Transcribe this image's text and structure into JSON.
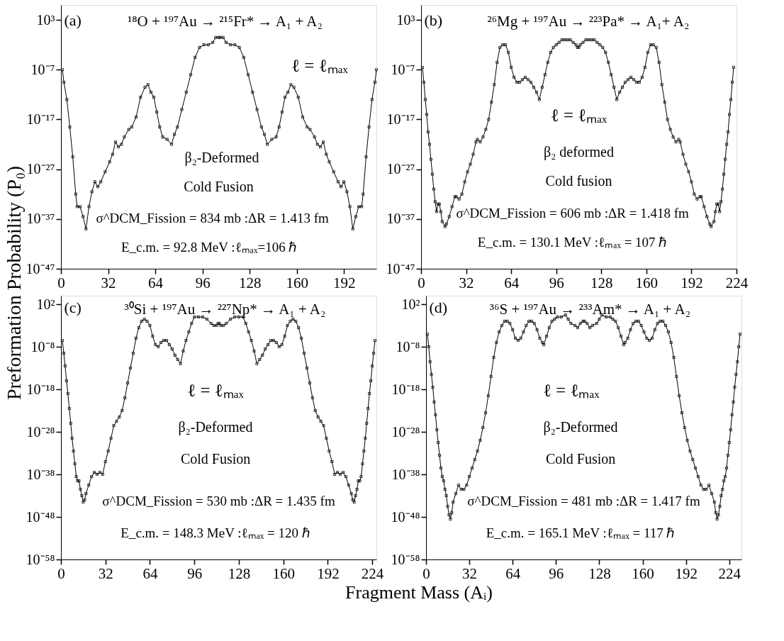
{
  "chart_data": [
    {
      "type": "line",
      "xlabel": "Fragment Mass (Aᵢ)",
      "ylabel": "Preformation Probability (P₀)",
      "log": true,
      "marker": "square",
      "line_style": "solid",
      "grid": false,
      "annotations": [
        "(a)",
        "¹⁸O + ¹⁹⁷Au → ²¹⁵Fr* → A₁ + A₂",
        "ℓ = ℓₘₐₓ",
        "β₂-Deformed",
        "Cold Fusion",
        "σ^DCM_Fission = 834 mb  :ΔR = 1.413 fm",
        "E_c.m. = 92.8 MeV  :ℓₘₐₓ=106 ℏ"
      ],
      "xlim": [
        0,
        214
      ],
      "xticks": [
        0,
        32,
        64,
        96,
        128,
        160,
        192
      ],
      "ylim": [
        1e-47,
        1000000.0
      ],
      "yticks": [
        {
          "value": 1000.0,
          "label": "10³"
        },
        {
          "value": 1e-07,
          "label": "10⁻⁷"
        },
        {
          "value": 1e-17,
          "label": "10⁻¹⁷"
        },
        {
          "value": 1e-27,
          "label": "10⁻²⁷"
        },
        {
          "value": 1e-37,
          "label": "10⁻³⁷"
        },
        {
          "value": 1e-47,
          "label": "10⁻⁴⁷"
        }
      ],
      "x": [
        1,
        2,
        4,
        6,
        8,
        10,
        11,
        13,
        15,
        17,
        19,
        21,
        23,
        25,
        27,
        30,
        33,
        35,
        37,
        39,
        41,
        43,
        46,
        48,
        51,
        54,
        57,
        59,
        61,
        63,
        65,
        67,
        69,
        72,
        75,
        77,
        79,
        82,
        85,
        88,
        91,
        94,
        97,
        100,
        103,
        105,
        107,
        108,
        110,
        112,
        115,
        118,
        121,
        124,
        127,
        130,
        133,
        136,
        138,
        140,
        143,
        146,
        148,
        150,
        152,
        154,
        156,
        158,
        161,
        164,
        167,
        169,
        172,
        174,
        176,
        178,
        180,
        182,
        185,
        188,
        190,
        192,
        194,
        196,
        198,
        200,
        202,
        204,
        205,
        207,
        209,
        211,
        213,
        214
      ],
      "series": [
        {
          "color": "#000000",
          "values": [
            1e-07,
            3e-10,
            1e-13,
            3e-19,
            3e-25,
            1e-32,
            3e-35,
            3e-35,
            3e-37,
            1e-39,
            3e-35,
            3e-32,
            3e-30,
            3e-31,
            3e-30,
            3e-28,
            3e-26,
            1e-24,
            3e-22,
            3e-23,
            1e-22,
            3e-21,
            1e-19,
            3e-19,
            3e-17,
            3e-13,
            3e-11,
            1e-10,
            3e-12,
            3e-13,
            3e-16,
            3e-19,
            3e-21,
            1e-21,
            1e-22,
            1e-20,
            3e-19,
            1e-15,
            3e-12,
            1e-08,
            3e-05,
            0.003,
            0.01,
            0.01,
            0.03,
            0.3,
            0.3,
            0.3,
            0.3,
            0.03,
            0.01,
            0.01,
            0.003,
            3e-05,
            1e-08,
            3e-12,
            1e-15,
            3e-19,
            1e-20,
            1e-22,
            1e-21,
            3e-21,
            3e-19,
            3e-16,
            3e-13,
            3e-12,
            1e-10,
            3e-11,
            3e-13,
            3e-17,
            3e-19,
            1e-19,
            3e-21,
            1e-22,
            3e-23,
            3e-22,
            1e-24,
            3e-26,
            3e-28,
            3e-30,
            3e-31,
            3e-30,
            3e-32,
            3e-35,
            1e-39,
            3e-37,
            3e-35,
            3e-35,
            1e-32,
            3e-25,
            3e-19,
            1e-13,
            3e-10,
            1e-07
          ]
        }
      ]
    },
    {
      "type": "line",
      "log": true,
      "marker": "square",
      "line_style": "solid",
      "grid": false,
      "annotations": [
        "(b)",
        "²⁶Mg + ¹⁹⁷Au → ²²³Pa* → A₁+ A₂",
        "ℓ = ℓₘₐₓ",
        "β₂ deformed",
        "Cold fusion",
        "σ^DCM_Fission = 606 mb  :ΔR = 1.418 fm",
        "E_c.m. = 130.1 MeV :ℓₘₐₓ = 107 ℏ"
      ],
      "xlim": [
        0,
        224
      ],
      "xticks": [
        0,
        32,
        64,
        96,
        128,
        160,
        192,
        224
      ],
      "ylim": [
        1e-47,
        1000000.0
      ],
      "yticks": [
        {
          "value": 1000.0,
          "label": "10³"
        },
        {
          "value": 1e-07,
          "label": "10⁻⁷"
        },
        {
          "value": 1e-17,
          "label": "10⁻¹⁷"
        },
        {
          "value": 1e-27,
          "label": "10⁻²⁷"
        },
        {
          "value": 1e-37,
          "label": "10⁻³⁷"
        },
        {
          "value": 1e-47,
          "label": "10⁻⁴⁷"
        }
      ],
      "x": [
        1,
        2,
        3,
        4,
        5,
        6,
        7,
        8,
        9,
        10,
        11,
        12,
        13,
        14,
        15,
        17,
        18,
        20,
        22,
        24,
        25,
        27,
        29,
        31,
        33,
        35,
        37,
        39,
        40,
        42,
        44,
        46,
        48,
        50,
        52,
        54,
        56,
        58,
        60,
        62,
        64,
        66,
        68,
        70,
        72,
        74,
        76,
        78,
        80,
        82,
        84,
        86,
        88,
        90,
        92,
        94,
        96,
        98,
        100,
        102,
        104,
        106,
        108,
        110,
        111,
        112,
        113,
        115,
        117,
        119,
        121,
        123,
        125,
        127,
        129,
        131,
        133,
        135,
        137,
        139,
        141,
        143,
        145,
        147,
        149,
        151,
        153,
        155,
        157,
        159,
        161,
        163,
        165,
        167,
        169,
        171,
        173,
        175,
        177,
        179,
        181,
        183,
        184,
        186,
        188,
        190,
        192,
        194,
        196,
        198,
        199,
        201,
        203,
        205,
        206,
        208,
        209,
        210,
        211,
        212,
        213,
        214,
        215,
        216,
        217,
        218,
        219,
        220,
        221,
        222
      ],
      "series": [
        {
          "color": "#000000",
          "values": [
            3e-07,
            3e-10,
            1e-13,
            1e-16,
            3e-20,
            1e-22,
            1e-25,
            1e-28,
            1e-31,
            3e-34,
            3e-36,
            1e-34,
            1e-34,
            3e-36,
            3e-38,
            3e-39,
            1e-38,
            3e-37,
            3e-35,
            3e-33,
            3e-33,
            1e-33,
            1e-32,
            3e-30,
            3e-28,
            1e-26,
            1e-24,
            3e-22,
            1e-21,
            3e-22,
            3e-21,
            1e-19,
            1e-17,
            3e-14,
            1e-10,
            3e-06,
            0.003,
            0.01,
            0.01,
            0.0003,
            3e-07,
            3e-09,
            3e-10,
            3e-10,
            1e-09,
            3e-09,
            1e-09,
            3e-10,
            3e-11,
            3e-12,
            1e-13,
            3e-11,
            1e-08,
            3e-06,
            0.0003,
            0.003,
            0.01,
            0.03,
            0.1,
            0.1,
            0.1,
            0.1,
            0.03,
            0.01,
            0.003,
            0.003,
            0.01,
            0.03,
            0.1,
            0.1,
            0.1,
            0.1,
            0.03,
            0.01,
            0.003,
            0.0003,
            3e-06,
            1e-08,
            3e-11,
            1e-13,
            3e-12,
            3e-11,
            3e-10,
            1e-09,
            3e-09,
            1e-09,
            3e-10,
            3e-10,
            3e-09,
            3e-07,
            0.0003,
            0.01,
            0.01,
            0.003,
            3e-06,
            1e-10,
            3e-14,
            1e-17,
            1e-19,
            3e-21,
            3e-22,
            1e-21,
            3e-22,
            1e-24,
            1e-26,
            3e-28,
            3e-30,
            1e-32,
            1e-33,
            3e-33,
            3e-33,
            3e-35,
            3e-37,
            1e-38,
            3e-39,
            3e-38,
            3e-36,
            1e-34,
            1e-34,
            3e-36,
            3e-34,
            1e-31,
            1e-28,
            1e-25,
            1e-22,
            3e-20,
            1e-16,
            1e-13,
            3e-10,
            3e-07
          ]
        }
      ]
    },
    {
      "type": "line",
      "log": true,
      "marker": "square",
      "line_style": "solid",
      "grid": false,
      "annotations": [
        "(c)",
        "³⁰Si + ¹⁹⁷Au → ²²⁷Np* → A₁ + A₂",
        "ℓ = ℓₘₐₓ",
        "β₂-Deformed",
        "Cold Fusion",
        "σ^DCM_Fission = 530 mb   :ΔR = 1.435 fm",
        "E_c.m. = 148.3 MeV :ℓₘₐₓ = 120 ℏ"
      ],
      "xlim": [
        0,
        227
      ],
      "xticks": [
        0,
        32,
        64,
        96,
        128,
        160,
        192,
        224
      ],
      "ylim": [
        1e-58,
        10000.0
      ],
      "yticks": [
        {
          "value": 100.0,
          "label": "10²"
        },
        {
          "value": 1e-08,
          "label": "10⁻⁸"
        },
        {
          "value": 1e-18,
          "label": "10⁻¹⁸"
        },
        {
          "value": 1e-28,
          "label": "10⁻²⁸"
        },
        {
          "value": 1e-38,
          "label": "10⁻³⁸"
        },
        {
          "value": 1e-48,
          "label": "10⁻⁴⁸"
        },
        {
          "value": 1e-58,
          "label": "10⁻⁵⁸"
        }
      ],
      "x": [
        1,
        2,
        3,
        4,
        5,
        6,
        7,
        8,
        9,
        10,
        11,
        12,
        13,
        14,
        15,
        16,
        17,
        18,
        20,
        22,
        24,
        26,
        28,
        30,
        32,
        34,
        36,
        38,
        40,
        42,
        44,
        46,
        48,
        50,
        52,
        54,
        56,
        58,
        60,
        62,
        64,
        66,
        68,
        70,
        72,
        74,
        76,
        78,
        80,
        82,
        84,
        86,
        88,
        90,
        92,
        94,
        96,
        99,
        102,
        105,
        108,
        110,
        112,
        113,
        114,
        115,
        117,
        119,
        122,
        125,
        128,
        131,
        133,
        135,
        137,
        139,
        141,
        143,
        145,
        147,
        149,
        151,
        153,
        155,
        157,
        159,
        161,
        163,
        165,
        167,
        169,
        171,
        173,
        175,
        177,
        179,
        181,
        183,
        185,
        187,
        189,
        191,
        193,
        195,
        197,
        199,
        201,
        203,
        205,
        207,
        209,
        210,
        211,
        212,
        213,
        214,
        215,
        216,
        217,
        218,
        219,
        220,
        221,
        222,
        223,
        224,
        225,
        226
      ],
      "series": [
        {
          "color": "#000000",
          "values": [
            3e-07,
            3e-10,
            3e-13,
            1e-16,
            1e-19,
            3e-23,
            1e-26,
            3e-30,
            3e-33,
            3e-36,
            3e-39,
            3e-40,
            3e-40,
            3e-42,
            1e-43,
            3e-45,
            1e-44,
            3e-43,
            3e-41,
            3e-39,
            3e-38,
            1e-38,
            3e-38,
            1e-38,
            1e-35,
            3e-33,
            3e-30,
            3e-27,
            3e-26,
            3e-25,
            1e-23,
            1e-20,
            3e-17,
            1e-13,
            3e-10,
            1e-06,
            0.0003,
            0.01,
            0.03,
            0.01,
            0.001,
            3e-06,
            3e-08,
            1e-08,
            1e-07,
            3e-07,
            3e-07,
            3e-08,
            3e-09,
            1e-10,
            1e-11,
            1e-12,
            1e-09,
            3e-07,
            3e-05,
            0.003,
            0.1,
            0.1,
            0.1,
            0.03,
            0.003,
            0.001,
            0.001,
            0.003,
            0.003,
            0.001,
            0.001,
            0.003,
            0.03,
            0.1,
            0.1,
            0.1,
            0.003,
            3e-05,
            3e-07,
            1e-09,
            1e-12,
            1e-11,
            1e-10,
            3e-09,
            3e-08,
            3e-07,
            3e-07,
            1e-07,
            1e-08,
            3e-08,
            3e-06,
            0.001,
            0.01,
            0.03,
            0.01,
            0.0003,
            1e-06,
            3e-10,
            1e-13,
            3e-17,
            1e-20,
            1e-23,
            3e-25,
            3e-26,
            3e-27,
            3e-30,
            3e-33,
            1e-35,
            1e-38,
            3e-38,
            1e-38,
            3e-38,
            3e-39,
            3e-41,
            3e-43,
            1e-44,
            3e-45,
            1e-43,
            3e-42,
            3e-40,
            3e-40,
            3e-39,
            3e-36,
            3e-33,
            3e-30,
            1e-26,
            3e-23,
            1e-19,
            1e-16,
            3e-13,
            3e-10,
            3e-07
          ]
        }
      ]
    },
    {
      "type": "line",
      "log": true,
      "marker": "square",
      "line_style": "solid",
      "grid": false,
      "annotations": [
        "(d)",
        "³⁶S + ¹⁹⁷Au → ²³³Am* → A₁ + A₂",
        "ℓ = ℓₘₐₓ",
        "β₂-Deformed",
        "Cold Fusion",
        "σ^DCM_Fission = 481 mb     :ΔR = 1.417 fm",
        "E_c.m. = 165.1 MeV :ℓₘₐₓ = 117 ℏ"
      ],
      "xlim": [
        0,
        233
      ],
      "xticks": [
        0,
        32,
        64,
        96,
        128,
        160,
        192,
        224
      ],
      "ylim": [
        1e-58,
        10000.0
      ],
      "yticks": [
        {
          "value": 100.0,
          "label": "10²"
        },
        {
          "value": 1e-08,
          "label": "10⁻⁸"
        },
        {
          "value": 1e-18,
          "label": "10⁻¹⁸"
        },
        {
          "value": 1e-28,
          "label": "10⁻²⁸"
        },
        {
          "value": 1e-38,
          "label": "10⁻³⁸"
        },
        {
          "value": 1e-48,
          "label": "10⁻⁴⁸"
        },
        {
          "value": 1e-58,
          "label": "10⁻⁵⁸"
        }
      ],
      "x": [
        1,
        2,
        3,
        4,
        5,
        6,
        7,
        8,
        9,
        10,
        11,
        12,
        13,
        14,
        15,
        16,
        17,
        18,
        19,
        20,
        22,
        24,
        26,
        28,
        30,
        32,
        34,
        36,
        38,
        40,
        42,
        44,
        46,
        48,
        50,
        52,
        54,
        56,
        58,
        60,
        62,
        64,
        66,
        68,
        70,
        72,
        74,
        76,
        78,
        80,
        82,
        84,
        86,
        87,
        89,
        91,
        93,
        95,
        97,
        100,
        103,
        105,
        107,
        110,
        112,
        114,
        116,
        117,
        119,
        121,
        123,
        126,
        128,
        130,
        133,
        136,
        138,
        140,
        142,
        144,
        146,
        147,
        149,
        151,
        153,
        155,
        157,
        159,
        161,
        163,
        165,
        167,
        169,
        171,
        173,
        175,
        177,
        179,
        181,
        183,
        185,
        187,
        189,
        191,
        193,
        195,
        197,
        199,
        201,
        203,
        205,
        207,
        209,
        211,
        213,
        214,
        215,
        216,
        217,
        218,
        219,
        220,
        221,
        222,
        223,
        224,
        225,
        226,
        227,
        228,
        229,
        230,
        231,
        232
      ],
      "series": [
        {
          "color": "#000000",
          "values": [
            1e-05,
            1e-08,
            3e-12,
            3e-15,
            3e-18,
            1e-21,
            1e-24,
            3e-28,
            3e-31,
            3e-34,
            3e-37,
            3e-39,
            3e-40,
            3e-42,
            1e-43,
            3e-46,
            3e-48,
            3e-49,
            1e-47,
            3e-45,
            3e-43,
            3e-41,
            3e-42,
            3e-42,
            3e-41,
            3e-39,
            3e-37,
            3e-35,
            3e-33,
            1e-30,
            1e-27,
            3e-24,
            3e-20,
            1e-15,
            3e-11,
            1e-07,
            3e-05,
            0.001,
            0.01,
            0.01,
            0.003,
            0.0001,
            1e-06,
            3e-07,
            1e-06,
            3e-05,
            0.001,
            0.01,
            0.01,
            0.003,
            0.0001,
            1e-06,
            1e-07,
            3e-08,
            3e-06,
            0.0003,
            0.01,
            0.03,
            0.1,
            0.1,
            0.3,
            0.03,
            0.003,
            0.001,
            0.0003,
            0.003,
            0.01,
            0.01,
            0.003,
            0.0003,
            0.001,
            0.003,
            0.03,
            0.3,
            0.1,
            0.1,
            0.03,
            0.01,
            0.0003,
            3e-06,
            3e-08,
            1e-07,
            1e-06,
            0.0001,
            0.003,
            0.01,
            0.01,
            0.001,
            3e-05,
            1e-06,
            3e-07,
            1e-06,
            0.0001,
            0.003,
            0.01,
            0.01,
            0.001,
            3e-05,
            1e-07,
            3e-11,
            1e-15,
            3e-20,
            3e-24,
            1e-27,
            1e-30,
            3e-33,
            3e-35,
            3e-37,
            3e-39,
            3e-41,
            3e-42,
            3e-42,
            3e-41,
            3e-43,
            3e-45,
            1e-47,
            3e-49,
            3e-48,
            3e-46,
            1e-43,
            3e-42,
            3e-40,
            3e-39,
            3e-37,
            3e-34,
            3e-31,
            3e-28,
            1e-24,
            1e-21,
            3e-18,
            3e-15,
            3e-12,
            1e-08,
            1e-05
          ]
        }
      ]
    }
  ]
}
